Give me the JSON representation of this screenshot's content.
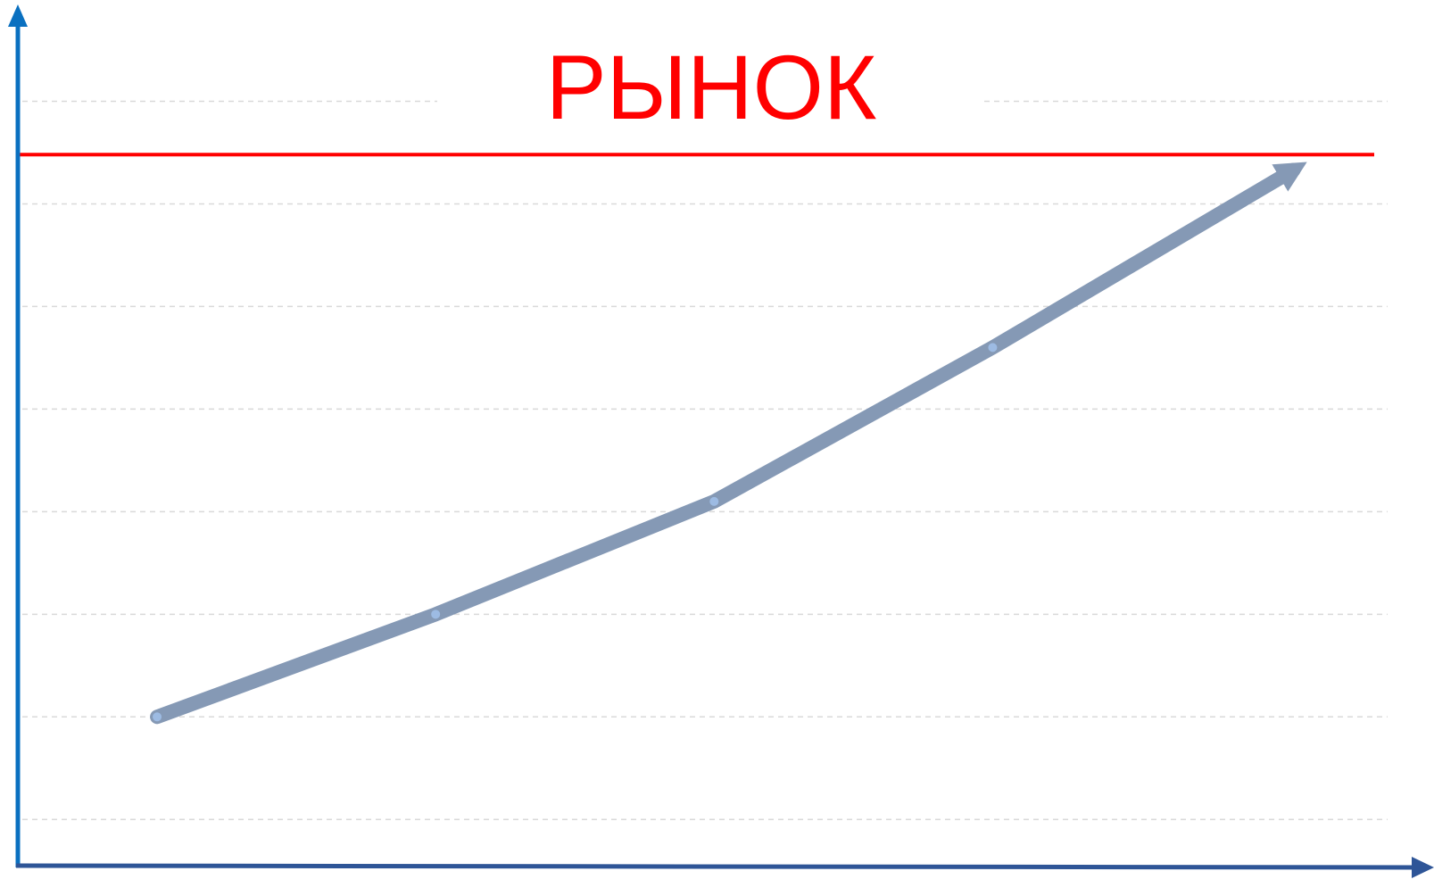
{
  "chart_data": {
    "type": "line",
    "x": [
      1,
      2,
      3,
      4,
      5.08
    ],
    "series": [
      {
        "color": "#8599b5",
        "marker_color": "#9dbbe3",
        "values": [
          2,
          3,
          4.1,
          5.6,
          7.33
        ]
      }
    ],
    "xlim": [
      0.5,
      5.45
    ],
    "ylim": [
      0.55,
      8.9
    ],
    "yticks": [
      1,
      2,
      3,
      4,
      5,
      6,
      7,
      8
    ],
    "grid": true,
    "reference_line": {
      "value": 7.48,
      "color": "#ff0000",
      "label": "РЫНОК"
    },
    "arrow_end": true
  }
}
